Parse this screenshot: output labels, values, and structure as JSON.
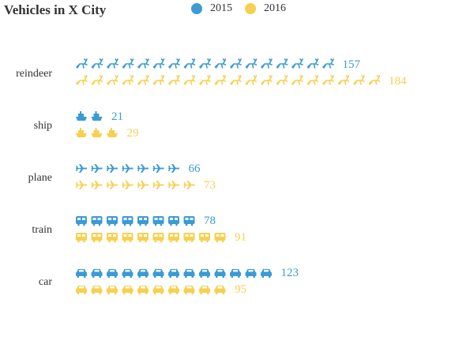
{
  "chart_data": {
    "type": "bar",
    "title": "Vehicles in X City",
    "categories": [
      "reindeer",
      "ship",
      "plane",
      "train",
      "car"
    ],
    "icons": [
      "reindeer-icon",
      "ship-icon",
      "plane-icon",
      "train-icon",
      "car-icon"
    ],
    "series": [
      {
        "name": "2015",
        "color": "#3a9bd5",
        "values": [
          157,
          21,
          66,
          78,
          123
        ]
      },
      {
        "name": "2016",
        "color": "#f7d04f",
        "values": [
          184,
          29,
          73,
          91,
          95
        ]
      }
    ],
    "units_per_symbol": 9.3,
    "legend_position": "top-center",
    "grid": false
  }
}
